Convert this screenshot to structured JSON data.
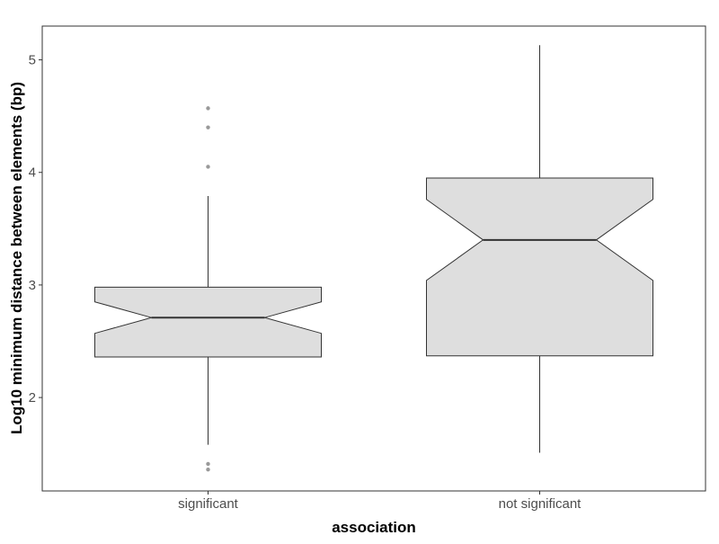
{
  "chart_data": {
    "type": "boxplot",
    "notched": true,
    "title": "",
    "xlabel": "association",
    "ylabel": "Log10 minimum distance between elements (bp)",
    "ylim": [
      1.17,
      5.3
    ],
    "y_ticks": [
      2,
      3,
      4,
      5
    ],
    "grid": false,
    "categories": [
      "significant",
      "not significant"
    ],
    "boxes": [
      {
        "category": "significant",
        "whisker_low": 1.58,
        "q1": 2.36,
        "median": 2.71,
        "q3": 2.98,
        "whisker_high": 3.79,
        "notch_low": 2.57,
        "notch_high": 2.85,
        "outliers": [
          4.57,
          4.4,
          4.05,
          1.41,
          1.36
        ]
      },
      {
        "category": "not significant",
        "whisker_low": 1.51,
        "q1": 2.37,
        "median": 3.4,
        "q3": 3.95,
        "whisker_high": 5.13,
        "notch_low": 3.04,
        "notch_high": 3.76,
        "outliers": []
      }
    ],
    "colors": {
      "box_fill": "#dedede",
      "box_stroke": "#333333",
      "outlier": "#999999",
      "axis": "#333333",
      "tick_label": "#4d4d4d",
      "title": "#000000"
    }
  }
}
